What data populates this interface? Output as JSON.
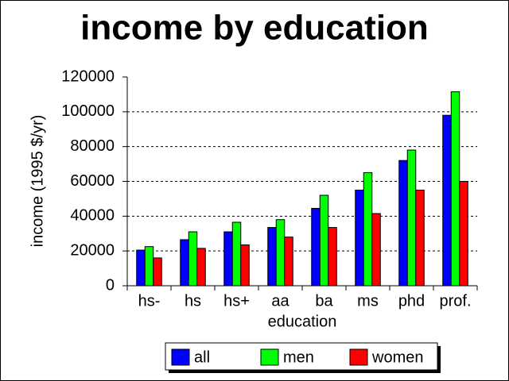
{
  "chart_data": {
    "type": "bar",
    "title": "income by education",
    "x_label": "education",
    "y_label": "income (1995 $/yr)",
    "categories": [
      "hs-",
      "hs",
      "hs+",
      "aa",
      "ba",
      "ms",
      "phd",
      "prof."
    ],
    "series": [
      {
        "name": "all",
        "color": "#0000ff",
        "values": [
          20500,
          26500,
          31000,
          33500,
          44500,
          55000,
          72000,
          98000
        ]
      },
      {
        "name": "men",
        "color": "#00ff00",
        "values": [
          22500,
          31000,
          36500,
          38000,
          52000,
          65000,
          78000,
          111500
        ]
      },
      {
        "name": "women",
        "color": "#ff0000",
        "values": [
          16000,
          21500,
          23500,
          28000,
          33500,
          41500,
          55000,
          60000
        ]
      }
    ],
    "ylim": [
      0,
      120000
    ],
    "yticks": [
      0,
      20000,
      40000,
      60000,
      80000,
      100000,
      120000
    ],
    "grid": true,
    "legend": "bottom"
  }
}
